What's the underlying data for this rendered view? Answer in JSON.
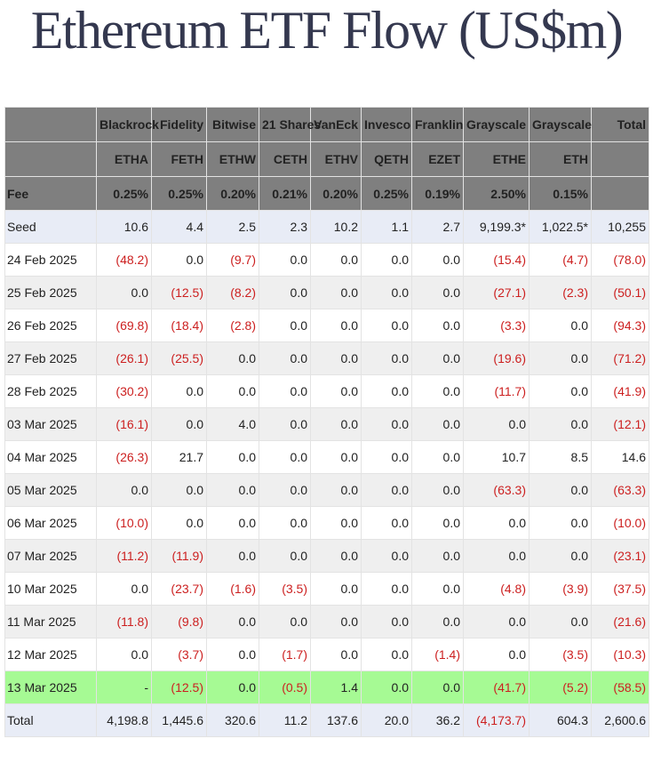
{
  "title": "Ethereum ETF Flow (US$m)",
  "colors": {
    "header_bg": "#7f7f7f",
    "row_blue": "#e8ecf6",
    "row_grey": "#efefef",
    "row_green": "#a6fa94",
    "negative_text": "#cc1f1f"
  },
  "header": {
    "issuers": [
      "",
      "Blackrock",
      "Fidelity",
      "Bitwise",
      "21 Shares",
      "VanEck",
      "Invesco",
      "Franklin",
      "Grayscale",
      "Grayscale",
      "Total"
    ],
    "tickers": [
      "",
      "ETHA",
      "FETH",
      "ETHW",
      "CETH",
      "ETHV",
      "QETH",
      "EZET",
      "ETHE",
      "ETH",
      ""
    ],
    "fees": [
      "Fee",
      "0.25%",
      "0.25%",
      "0.20%",
      "0.21%",
      "0.20%",
      "0.25%",
      "0.19%",
      "2.50%",
      "0.15%",
      ""
    ]
  },
  "rows": [
    {
      "label": "Seed",
      "style": "blue",
      "cells": [
        "10.6",
        "4.4",
        "2.5",
        "2.3",
        "10.2",
        "1.1",
        "2.7",
        "9,199.3*",
        "1,022.5*",
        "10,255"
      ]
    },
    {
      "label": "24 Feb 2025",
      "style": "white",
      "cells": [
        "(48.2)",
        "0.0",
        "(9.7)",
        "0.0",
        "0.0",
        "0.0",
        "0.0",
        "(15.4)",
        "(4.7)",
        "(78.0)"
      ]
    },
    {
      "label": "25 Feb 2025",
      "style": "grey",
      "cells": [
        "0.0",
        "(12.5)",
        "(8.2)",
        "0.0",
        "0.0",
        "0.0",
        "0.0",
        "(27.1)",
        "(2.3)",
        "(50.1)"
      ]
    },
    {
      "label": "26 Feb 2025",
      "style": "white",
      "cells": [
        "(69.8)",
        "(18.4)",
        "(2.8)",
        "0.0",
        "0.0",
        "0.0",
        "0.0",
        "(3.3)",
        "0.0",
        "(94.3)"
      ]
    },
    {
      "label": "27 Feb 2025",
      "style": "grey",
      "cells": [
        "(26.1)",
        "(25.5)",
        "0.0",
        "0.0",
        "0.0",
        "0.0",
        "0.0",
        "(19.6)",
        "0.0",
        "(71.2)"
      ]
    },
    {
      "label": "28 Feb 2025",
      "style": "white",
      "cells": [
        "(30.2)",
        "0.0",
        "0.0",
        "0.0",
        "0.0",
        "0.0",
        "0.0",
        "(11.7)",
        "0.0",
        "(41.9)"
      ]
    },
    {
      "label": "03 Mar 2025",
      "style": "grey",
      "cells": [
        "(16.1)",
        "0.0",
        "4.0",
        "0.0",
        "0.0",
        "0.0",
        "0.0",
        "0.0",
        "0.0",
        "(12.1)"
      ]
    },
    {
      "label": "04 Mar 2025",
      "style": "white",
      "cells": [
        "(26.3)",
        "21.7",
        "0.0",
        "0.0",
        "0.0",
        "0.0",
        "0.0",
        "10.7",
        "8.5",
        "14.6"
      ]
    },
    {
      "label": "05 Mar 2025",
      "style": "grey",
      "cells": [
        "0.0",
        "0.0",
        "0.0",
        "0.0",
        "0.0",
        "0.0",
        "0.0",
        "(63.3)",
        "0.0",
        "(63.3)"
      ]
    },
    {
      "label": "06 Mar 2025",
      "style": "white",
      "cells": [
        "(10.0)",
        "0.0",
        "0.0",
        "0.0",
        "0.0",
        "0.0",
        "0.0",
        "0.0",
        "0.0",
        "(10.0)"
      ]
    },
    {
      "label": "07 Mar 2025",
      "style": "grey",
      "cells": [
        "(11.2)",
        "(11.9)",
        "0.0",
        "0.0",
        "0.0",
        "0.0",
        "0.0",
        "0.0",
        "0.0",
        "(23.1)"
      ]
    },
    {
      "label": "10 Mar 2025",
      "style": "white",
      "cells": [
        "0.0",
        "(23.7)",
        "(1.6)",
        "(3.5)",
        "0.0",
        "0.0",
        "0.0",
        "(4.8)",
        "(3.9)",
        "(37.5)"
      ]
    },
    {
      "label": "11 Mar 2025",
      "style": "grey",
      "cells": [
        "(11.8)",
        "(9.8)",
        "0.0",
        "0.0",
        "0.0",
        "0.0",
        "0.0",
        "0.0",
        "0.0",
        "(21.6)"
      ]
    },
    {
      "label": "12 Mar 2025",
      "style": "white",
      "cells": [
        "0.0",
        "(3.7)",
        "0.0",
        "(1.7)",
        "0.0",
        "0.0",
        "(1.4)",
        "0.0",
        "(3.5)",
        "(10.3)"
      ]
    },
    {
      "label": "13 Mar 2025",
      "style": "green",
      "cells": [
        "-",
        "(12.5)",
        "0.0",
        "(0.5)",
        "1.4",
        "0.0",
        "0.0",
        "(41.7)",
        "(5.2)",
        "(58.5)"
      ]
    },
    {
      "label": "Total",
      "style": "blue",
      "cells": [
        "4,198.8",
        "1,445.6",
        "320.6",
        "11.2",
        "137.6",
        "20.0",
        "36.2",
        "(4,173.7)",
        "604.3",
        "2,600.6"
      ]
    }
  ]
}
